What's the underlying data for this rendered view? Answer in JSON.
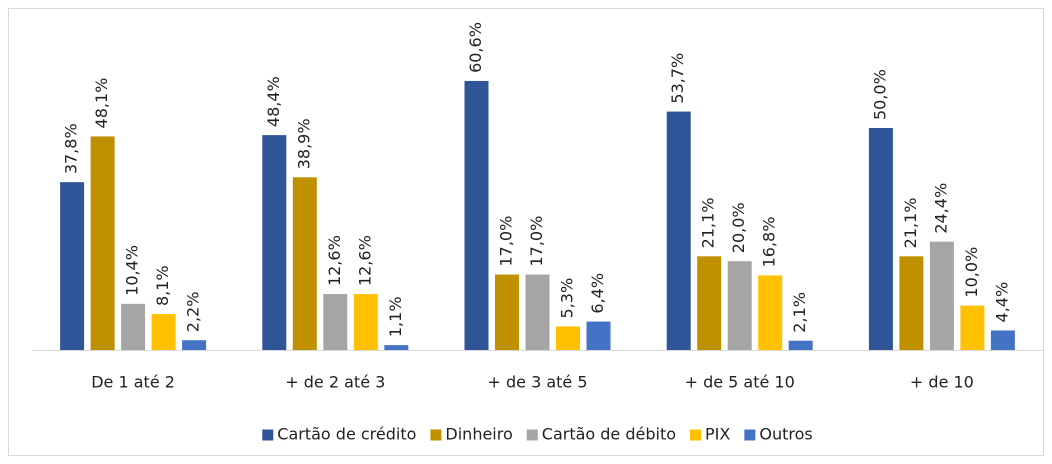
{
  "chart_data": {
    "type": "bar",
    "categories": [
      "De 1 até 2",
      "+ de 2 até 3",
      "+ de 3 até 5",
      "+ de 5 até 10",
      "+ de 10"
    ],
    "series": [
      {
        "name": "Cartão de crédito",
        "color": "#2f5597",
        "values": [
          37.8,
          48.4,
          60.6,
          53.7,
          50.0
        ],
        "value_labels": [
          "37,8%",
          "48,4%",
          "60,6%",
          "53,7%",
          "50,0%"
        ]
      },
      {
        "name": "Dinheiro",
        "color": "#bf9000",
        "values": [
          48.1,
          38.9,
          17.0,
          21.1,
          21.1
        ],
        "value_labels": [
          "48,1%",
          "38,9%",
          "17,0%",
          "21,1%",
          "21,1%"
        ]
      },
      {
        "name": "Cartão de débito",
        "color": "#a5a5a5",
        "values": [
          10.4,
          12.6,
          17.0,
          20.0,
          24.4
        ],
        "value_labels": [
          "10,4%",
          "12,6%",
          "17,0%",
          "20,0%",
          "24,4%"
        ]
      },
      {
        "name": "PIX",
        "color": "#ffc000",
        "values": [
          8.1,
          12.6,
          5.3,
          16.8,
          10.0
        ],
        "value_labels": [
          "8,1%",
          "12,6%",
          "5,3%",
          "16,8%",
          "10,0%"
        ]
      },
      {
        "name": "Outros",
        "color": "#4472c4",
        "values": [
          2.2,
          1.1,
          6.4,
          2.1,
          4.4
        ],
        "value_labels": [
          "2,2%",
          "1,1%",
          "6,4%",
          "2,1%",
          "4,4%"
        ]
      }
    ],
    "legend": "bottom"
  }
}
